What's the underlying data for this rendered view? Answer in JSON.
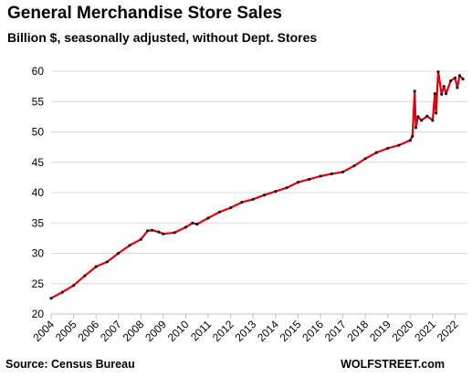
{
  "header": {
    "title": "General Merchandise Store Sales",
    "subtitle": "Billion $, seasonally adjusted, without Dept. Stores"
  },
  "footer": {
    "source": "Source: Census Bureau",
    "brand": "WOLFSTREET.com"
  },
  "colors": {
    "line": "#e0000f",
    "markers": "#1a1a1a",
    "grid": "#d9d9d9",
    "axis": "#bfbfbf"
  },
  "chart_data": {
    "type": "line",
    "title": "General Merchandise Store Sales",
    "subtitle": "Billion $, seasonally adjusted, without Dept. Stores",
    "xlabel": "",
    "ylabel": "",
    "ylim": [
      20,
      60
    ],
    "yticks": [
      20,
      25,
      30,
      35,
      40,
      45,
      50,
      55,
      60
    ],
    "xlim": [
      2004.0,
      2022.55
    ],
    "xticks": [
      "2004",
      "2005",
      "2006",
      "2007",
      "2008",
      "2009",
      "2010",
      "2011",
      "2012",
      "2013",
      "2014",
      "2015",
      "2016",
      "2017",
      "2018",
      "2019",
      "2020",
      "2021",
      "2022"
    ],
    "grid": "horizontal",
    "legend": "none",
    "series": [
      {
        "name": "",
        "x": [
          2004.0,
          2004.5,
          2005.0,
          2005.5,
          2006.0,
          2006.5,
          2007.0,
          2007.5,
          2008.0,
          2008.3,
          2008.5,
          2008.8,
          2009.0,
          2009.5,
          2010.0,
          2010.3,
          2010.5,
          2011.0,
          2011.5,
          2012.0,
          2012.5,
          2013.0,
          2013.5,
          2014.0,
          2014.5,
          2015.0,
          2015.5,
          2016.0,
          2016.5,
          2017.0,
          2017.5,
          2018.0,
          2018.5,
          2019.0,
          2019.5,
          2020.0,
          2020.1,
          2020.2,
          2020.25,
          2020.35,
          2020.5,
          2020.75,
          2021.0,
          2021.1,
          2021.15,
          2021.25,
          2021.4,
          2021.5,
          2021.6,
          2021.8,
          2022.0,
          2022.1,
          2022.2,
          2022.35
        ],
        "values": [
          22.6,
          23.6,
          24.7,
          26.3,
          27.8,
          28.6,
          30.0,
          31.3,
          32.3,
          33.7,
          33.8,
          33.5,
          33.2,
          33.4,
          34.3,
          35.0,
          34.8,
          35.8,
          36.8,
          37.5,
          38.4,
          38.9,
          39.6,
          40.2,
          40.8,
          41.7,
          42.2,
          42.7,
          43.1,
          43.4,
          44.4,
          45.6,
          46.6,
          47.3,
          47.8,
          48.6,
          49.3,
          56.7,
          50.7,
          52.5,
          51.9,
          52.6,
          51.9,
          56.3,
          53.1,
          59.9,
          56.2,
          57.5,
          56.3,
          58.4,
          58.9,
          57.3,
          59.3,
          58.7
        ]
      }
    ]
  }
}
